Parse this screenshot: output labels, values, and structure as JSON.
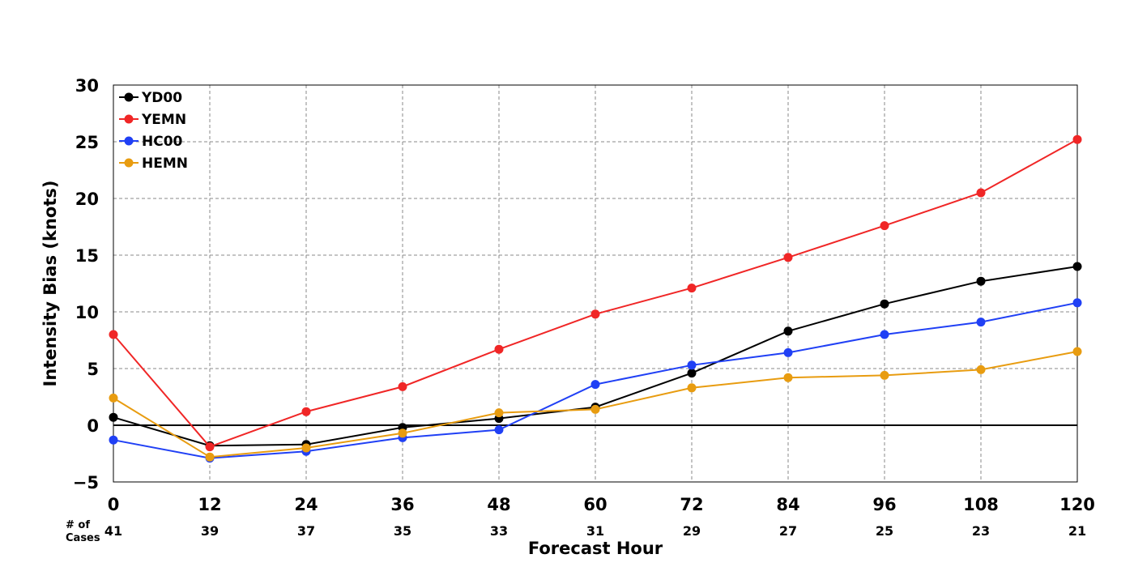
{
  "chart_data": {
    "type": "line",
    "title": "",
    "xlabel": "Forecast Hour",
    "ylabel": "Intensity Bias (knots)",
    "x": [
      0,
      12,
      24,
      36,
      48,
      60,
      72,
      84,
      96,
      108,
      120
    ],
    "xlim": [
      0,
      120
    ],
    "ylim": [
      -5,
      30
    ],
    "y_ticks": [
      -5,
      0,
      5,
      10,
      15,
      20,
      25,
      30
    ],
    "y_tick_labels": [
      "−5",
      "0",
      "5",
      "10",
      "15",
      "20",
      "25",
      "30"
    ],
    "x_ticks": [
      0,
      12,
      24,
      36,
      48,
      60,
      72,
      84,
      96,
      108,
      120
    ],
    "x_tick_labels": [
      "0",
      "12",
      "24",
      "36",
      "48",
      "60",
      "72",
      "84",
      "96",
      "108",
      "120"
    ],
    "grid": true,
    "zero_line": true,
    "legend_position": "top-left",
    "cases_label": "# of Cases",
    "cases_label_lines": [
      "# of",
      "Cases"
    ],
    "cases": [
      "41",
      "39",
      "37",
      "35",
      "33",
      "31",
      "29",
      "27",
      "25",
      "23",
      "21"
    ],
    "series": [
      {
        "name": "YD00",
        "color": "#000000",
        "values": [
          0.7,
          -1.8,
          -1.7,
          -0.2,
          0.6,
          1.6,
          4.6,
          8.3,
          10.7,
          12.7,
          14.0
        ]
      },
      {
        "name": "YEMN",
        "color": "#f02626",
        "values": [
          8.0,
          -1.9,
          1.2,
          3.4,
          6.7,
          9.8,
          12.1,
          14.8,
          17.6,
          20.5,
          25.2
        ]
      },
      {
        "name": "HC00",
        "color": "#2040f5",
        "values": [
          -1.3,
          -2.9,
          -2.3,
          -1.1,
          -0.4,
          3.6,
          5.3,
          6.4,
          8.0,
          9.1,
          10.8
        ]
      },
      {
        "name": "HEMN",
        "color": "#e89c10",
        "values": [
          2.4,
          -2.8,
          -2.0,
          -0.7,
          1.1,
          1.4,
          3.3,
          4.2,
          4.4,
          4.9,
          6.5
        ]
      }
    ]
  }
}
